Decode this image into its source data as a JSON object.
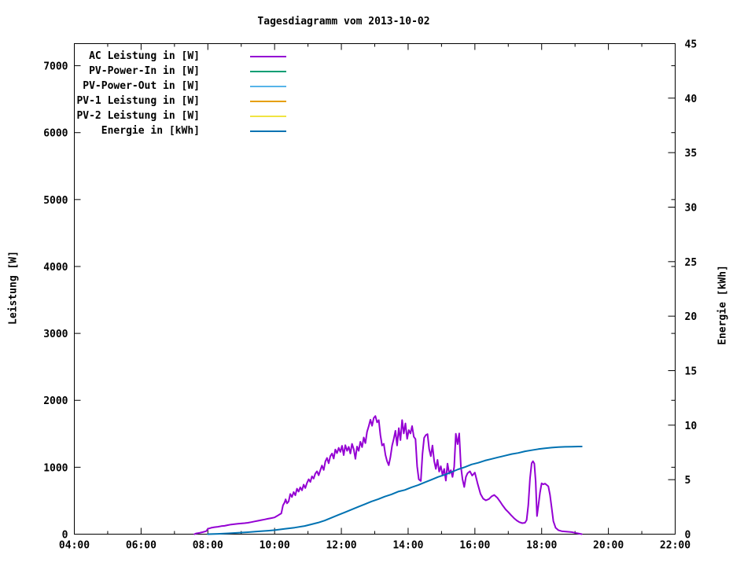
{
  "colors": {
    "background": "#ffffff",
    "axis": "#000000",
    "text": "#000000"
  },
  "chart_data": {
    "type": "line",
    "title": "Tagesdiagramm vom 2013-10-02",
    "grid": false,
    "legend_position": "top-left-inside",
    "x_axis": {
      "label": "",
      "min": 4,
      "max": 22,
      "major_ticks": [
        4,
        6,
        8,
        10,
        12,
        14,
        16,
        18,
        20,
        22
      ],
      "major_tick_labels": [
        "04:00",
        "06:00",
        "08:00",
        "10:00",
        "12:00",
        "14:00",
        "16:00",
        "18:00",
        "20:00",
        "22:00"
      ],
      "minor_ticks": [
        5,
        7,
        9,
        11,
        13,
        15,
        17,
        19,
        21
      ]
    },
    "y1_axis": {
      "label": "Leistung [W]",
      "min": 0,
      "max_at_top": 7330,
      "ticks": [
        0,
        1000,
        2000,
        3000,
        4000,
        5000,
        6000,
        7000
      ],
      "tick_labels": [
        "0",
        "1000",
        "2000",
        "3000",
        "4000",
        "5000",
        "6000",
        "7000"
      ]
    },
    "y2_axis": {
      "label": "Energie [kWh]",
      "min": 0,
      "max": 45,
      "ticks": [
        0,
        5,
        10,
        15,
        20,
        25,
        30,
        35,
        40,
        45
      ],
      "tick_labels": [
        "0",
        "5",
        "10",
        "15",
        "20",
        "25",
        "30",
        "35",
        "40",
        "45"
      ]
    },
    "series": [
      {
        "name": "AC Leistung in [W]",
        "slug": "ac-leistung",
        "color": "#9400D3",
        "axis": "y1",
        "points": [
          [
            7.6,
            0
          ],
          [
            7.65,
            10
          ],
          [
            7.75,
            20
          ],
          [
            7.85,
            30
          ],
          [
            7.95,
            45
          ],
          [
            8.0,
            80
          ],
          [
            8.1,
            95
          ],
          [
            8.2,
            105
          ],
          [
            8.3,
            110
          ],
          [
            8.4,
            120
          ],
          [
            8.5,
            125
          ],
          [
            8.6,
            135
          ],
          [
            8.7,
            145
          ],
          [
            8.8,
            150
          ],
          [
            8.9,
            155
          ],
          [
            9.0,
            160
          ],
          [
            9.1,
            165
          ],
          [
            9.2,
            170
          ],
          [
            9.3,
            180
          ],
          [
            9.4,
            190
          ],
          [
            9.5,
            200
          ],
          [
            9.6,
            210
          ],
          [
            9.7,
            220
          ],
          [
            9.8,
            230
          ],
          [
            9.9,
            240
          ],
          [
            10.0,
            250
          ],
          [
            10.05,
            265
          ],
          [
            10.1,
            280
          ],
          [
            10.15,
            295
          ],
          [
            10.2,
            310
          ],
          [
            10.25,
            430
          ],
          [
            10.3,
            475
          ],
          [
            10.33,
            520
          ],
          [
            10.37,
            460
          ],
          [
            10.42,
            490
          ],
          [
            10.47,
            600
          ],
          [
            10.52,
            555
          ],
          [
            10.57,
            630
          ],
          [
            10.62,
            580
          ],
          [
            10.67,
            680
          ],
          [
            10.72,
            635
          ],
          [
            10.77,
            700
          ],
          [
            10.82,
            655
          ],
          [
            10.87,
            740
          ],
          [
            10.92,
            690
          ],
          [
            10.97,
            765
          ],
          [
            11.02,
            820
          ],
          [
            11.07,
            780
          ],
          [
            11.12,
            865
          ],
          [
            11.17,
            830
          ],
          [
            11.22,
            905
          ],
          [
            11.27,
            940
          ],
          [
            11.32,
            880
          ],
          [
            11.37,
            955
          ],
          [
            11.42,
            1025
          ],
          [
            11.47,
            960
          ],
          [
            11.52,
            1085
          ],
          [
            11.57,
            1140
          ],
          [
            11.62,
            1060
          ],
          [
            11.67,
            1165
          ],
          [
            11.72,
            1205
          ],
          [
            11.77,
            1130
          ],
          [
            11.82,
            1265
          ],
          [
            11.87,
            1210
          ],
          [
            11.92,
            1290
          ],
          [
            11.97,
            1230
          ],
          [
            12.02,
            1320
          ],
          [
            12.07,
            1180
          ],
          [
            12.12,
            1330
          ],
          [
            12.17,
            1245
          ],
          [
            12.22,
            1305
          ],
          [
            12.27,
            1205
          ],
          [
            12.32,
            1350
          ],
          [
            12.37,
            1270
          ],
          [
            12.42,
            1125
          ],
          [
            12.47,
            1310
          ],
          [
            12.52,
            1245
          ],
          [
            12.57,
            1380
          ],
          [
            12.62,
            1300
          ],
          [
            12.67,
            1445
          ],
          [
            12.72,
            1360
          ],
          [
            12.77,
            1530
          ],
          [
            12.82,
            1615
          ],
          [
            12.87,
            1710
          ],
          [
            12.92,
            1620
          ],
          [
            12.97,
            1735
          ],
          [
            13.02,
            1765
          ],
          [
            13.07,
            1670
          ],
          [
            13.12,
            1705
          ],
          [
            13.17,
            1480
          ],
          [
            13.22,
            1325
          ],
          [
            13.27,
            1350
          ],
          [
            13.32,
            1185
          ],
          [
            13.37,
            1090
          ],
          [
            13.42,
            1030
          ],
          [
            13.47,
            1150
          ],
          [
            13.52,
            1325
          ],
          [
            13.57,
            1425
          ],
          [
            13.62,
            1545
          ],
          [
            13.67,
            1325
          ],
          [
            13.72,
            1585
          ],
          [
            13.77,
            1405
          ],
          [
            13.82,
            1705
          ],
          [
            13.87,
            1505
          ],
          [
            13.92,
            1655
          ],
          [
            13.97,
            1425
          ],
          [
            14.02,
            1555
          ],
          [
            14.07,
            1505
          ],
          [
            14.12,
            1615
          ],
          [
            14.17,
            1455
          ],
          [
            14.22,
            1420
          ],
          [
            14.27,
            1015
          ],
          [
            14.32,
            820
          ],
          [
            14.38,
            795
          ],
          [
            14.43,
            1200
          ],
          [
            14.48,
            1440
          ],
          [
            14.53,
            1480
          ],
          [
            14.58,
            1495
          ],
          [
            14.63,
            1270
          ],
          [
            14.68,
            1165
          ],
          [
            14.73,
            1325
          ],
          [
            14.78,
            1090
          ],
          [
            14.83,
            975
          ],
          [
            14.88,
            1110
          ],
          [
            14.93,
            935
          ],
          [
            14.98,
            1015
          ],
          [
            15.03,
            885
          ],
          [
            15.08,
            975
          ],
          [
            15.13,
            800
          ],
          [
            15.18,
            1055
          ],
          [
            15.23,
            905
          ],
          [
            15.28,
            955
          ],
          [
            15.33,
            855
          ],
          [
            15.38,
            1005
          ],
          [
            15.43,
            1500
          ],
          [
            15.48,
            1345
          ],
          [
            15.53,
            1505
          ],
          [
            15.58,
            1015
          ],
          [
            15.63,
            820
          ],
          [
            15.68,
            705
          ],
          [
            15.73,
            855
          ],
          [
            15.78,
            910
          ],
          [
            15.85,
            940
          ],
          [
            15.92,
            875
          ],
          [
            16.0,
            920
          ],
          [
            16.08,
            760
          ],
          [
            16.17,
            600
          ],
          [
            16.25,
            530
          ],
          [
            16.33,
            505
          ],
          [
            16.42,
            525
          ],
          [
            16.5,
            565
          ],
          [
            16.58,
            585
          ],
          [
            16.67,
            545
          ],
          [
            16.75,
            490
          ],
          [
            16.83,
            430
          ],
          [
            16.92,
            370
          ],
          [
            17.0,
            330
          ],
          [
            17.08,
            285
          ],
          [
            17.17,
            240
          ],
          [
            17.25,
            205
          ],
          [
            17.33,
            180
          ],
          [
            17.42,
            165
          ],
          [
            17.5,
            170
          ],
          [
            17.55,
            210
          ],
          [
            17.6,
            430
          ],
          [
            17.65,
            830
          ],
          [
            17.7,
            1060
          ],
          [
            17.74,
            1090
          ],
          [
            17.78,
            1055
          ],
          [
            17.82,
            790
          ],
          [
            17.86,
            270
          ],
          [
            17.9,
            420
          ],
          [
            17.95,
            620
          ],
          [
            18.0,
            760
          ],
          [
            18.05,
            745
          ],
          [
            18.1,
            755
          ],
          [
            18.15,
            735
          ],
          [
            18.2,
            715
          ],
          [
            18.25,
            590
          ],
          [
            18.3,
            390
          ],
          [
            18.35,
            195
          ],
          [
            18.42,
            95
          ],
          [
            18.5,
            60
          ],
          [
            18.6,
            45
          ],
          [
            18.7,
            40
          ],
          [
            18.8,
            35
          ],
          [
            18.9,
            30
          ],
          [
            19.0,
            20
          ],
          [
            19.1,
            10
          ],
          [
            19.2,
            0
          ]
        ]
      },
      {
        "name": "PV-Power-In in [W]",
        "slug": "pv-power-in",
        "color": "#009E73",
        "axis": "y1",
        "points": []
      },
      {
        "name": "PV-Power-Out in [W]",
        "slug": "pv-power-out",
        "color": "#56B4E9",
        "axis": "y1",
        "points": []
      },
      {
        "name": "PV-1 Leistung in [W]",
        "slug": "pv-1-leistung",
        "color": "#E69F00",
        "axis": "y1",
        "points": []
      },
      {
        "name": "PV-2 Leistung in [W]",
        "slug": "pv-2-leistung",
        "color": "#F0E442",
        "axis": "y1",
        "points": []
      },
      {
        "name": "Energie in [kWh]",
        "slug": "energie",
        "color": "#0072B2",
        "axis": "y2",
        "points": [
          [
            8.0,
            0
          ],
          [
            8.3,
            0.03
          ],
          [
            8.6,
            0.07
          ],
          [
            8.9,
            0.12
          ],
          [
            9.2,
            0.18
          ],
          [
            9.5,
            0.25
          ],
          [
            9.8,
            0.32
          ],
          [
            10.0,
            0.37
          ],
          [
            10.3,
            0.48
          ],
          [
            10.6,
            0.6
          ],
          [
            10.9,
            0.75
          ],
          [
            11.1,
            0.9
          ],
          [
            11.3,
            1.05
          ],
          [
            11.5,
            1.25
          ],
          [
            11.7,
            1.5
          ],
          [
            11.9,
            1.75
          ],
          [
            12.1,
            2.0
          ],
          [
            12.3,
            2.25
          ],
          [
            12.5,
            2.5
          ],
          [
            12.7,
            2.75
          ],
          [
            12.9,
            3.0
          ],
          [
            13.1,
            3.2
          ],
          [
            13.3,
            3.45
          ],
          [
            13.5,
            3.65
          ],
          [
            13.7,
            3.9
          ],
          [
            13.9,
            4.05
          ],
          [
            14.1,
            4.3
          ],
          [
            14.3,
            4.5
          ],
          [
            14.5,
            4.75
          ],
          [
            14.7,
            5.0
          ],
          [
            14.9,
            5.25
          ],
          [
            15.1,
            5.45
          ],
          [
            15.3,
            5.7
          ],
          [
            15.5,
            5.95
          ],
          [
            15.7,
            6.15
          ],
          [
            15.9,
            6.4
          ],
          [
            16.1,
            6.55
          ],
          [
            16.3,
            6.75
          ],
          [
            16.5,
            6.9
          ],
          [
            16.7,
            7.05
          ],
          [
            16.9,
            7.2
          ],
          [
            17.1,
            7.35
          ],
          [
            17.3,
            7.45
          ],
          [
            17.5,
            7.6
          ],
          [
            17.7,
            7.7
          ],
          [
            17.9,
            7.8
          ],
          [
            18.1,
            7.88
          ],
          [
            18.3,
            7.94
          ],
          [
            18.5,
            7.98
          ],
          [
            18.7,
            8.01
          ],
          [
            18.9,
            8.03
          ],
          [
            19.1,
            8.04
          ],
          [
            19.2,
            8.04
          ]
        ]
      }
    ]
  }
}
